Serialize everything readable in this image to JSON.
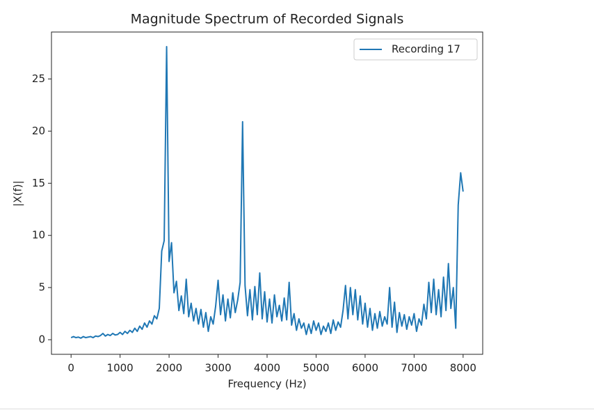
{
  "chart_data": {
    "type": "line",
    "title": "Magnitude Spectrum of Recorded Signals",
    "x_label": "Frequency (Hz)",
    "y_label": "|X(f)|",
    "legend": "upper right",
    "xlim": [
      -400,
      8400
    ],
    "ylim": [
      -1.4,
      29.5
    ],
    "xticks": [
      0,
      1000,
      2000,
      3000,
      4000,
      5000,
      6000,
      7000,
      8000
    ],
    "yticks": [
      0,
      5,
      10,
      15,
      20,
      25
    ],
    "x": [
      0,
      50,
      100,
      150,
      200,
      250,
      300,
      350,
      400,
      450,
      500,
      550,
      600,
      650,
      700,
      750,
      800,
      850,
      900,
      950,
      1000,
      1050,
      1100,
      1150,
      1200,
      1250,
      1300,
      1350,
      1400,
      1450,
      1500,
      1550,
      1600,
      1650,
      1700,
      1750,
      1800,
      1850,
      1900,
      1950,
      2000,
      2050,
      2100,
      2150,
      2200,
      2250,
      2300,
      2350,
      2400,
      2450,
      2500,
      2550,
      2600,
      2650,
      2700,
      2750,
      2800,
      2850,
      2900,
      2950,
      3000,
      3050,
      3100,
      3150,
      3200,
      3250,
      3300,
      3350,
      3400,
      3450,
      3500,
      3550,
      3600,
      3650,
      3700,
      3750,
      3800,
      3850,
      3900,
      3950,
      4000,
      4050,
      4100,
      4150,
      4200,
      4250,
      4300,
      4350,
      4400,
      4450,
      4500,
      4550,
      4600,
      4650,
      4700,
      4750,
      4800,
      4850,
      4900,
      4950,
      5000,
      5050,
      5100,
      5150,
      5200,
      5250,
      5300,
      5350,
      5400,
      5450,
      5500,
      5550,
      5600,
      5650,
      5700,
      5750,
      5800,
      5850,
      5900,
      5950,
      6000,
      6050,
      6100,
      6150,
      6200,
      6250,
      6300,
      6350,
      6400,
      6450,
      6500,
      6550,
      6600,
      6650,
      6700,
      6750,
      6800,
      6850,
      6900,
      6950,
      7000,
      7050,
      7100,
      7150,
      7200,
      7250,
      7300,
      7350,
      7400,
      7450,
      7500,
      7550,
      7600,
      7650,
      7700,
      7750,
      7800,
      7850,
      7900,
      7950,
      8000
    ],
    "series": [
      {
        "name": "Recording 17",
        "color": "#1f77b4",
        "values": [
          0.2,
          0.3,
          0.2,
          0.25,
          0.15,
          0.3,
          0.2,
          0.25,
          0.3,
          0.2,
          0.35,
          0.3,
          0.4,
          0.6,
          0.35,
          0.5,
          0.4,
          0.6,
          0.45,
          0.5,
          0.7,
          0.5,
          0.8,
          0.6,
          0.9,
          0.7,
          1.1,
          0.8,
          1.3,
          1.0,
          1.6,
          1.2,
          1.8,
          1.5,
          2.3,
          2.0,
          3.0,
          8.5,
          9.5,
          28.1,
          7.5,
          9.3,
          4.5,
          5.6,
          2.8,
          4.2,
          2.5,
          5.8,
          2.2,
          3.5,
          1.8,
          3.0,
          1.5,
          2.9,
          1.2,
          2.6,
          0.8,
          2.2,
          1.5,
          3.2,
          5.7,
          2.4,
          4.3,
          1.8,
          3.9,
          2.1,
          4.5,
          2.6,
          3.8,
          5.5,
          20.9,
          5.2,
          2.3,
          4.8,
          1.9,
          5.1,
          2.4,
          6.4,
          2.0,
          4.6,
          1.7,
          3.9,
          1.6,
          4.3,
          2.2,
          3.3,
          1.8,
          4.0,
          1.9,
          5.5,
          1.4,
          2.5,
          0.9,
          2.0,
          1.1,
          1.6,
          0.5,
          1.5,
          0.6,
          1.8,
          0.9,
          1.6,
          0.5,
          1.3,
          0.8,
          1.6,
          0.6,
          1.9,
          0.9,
          1.7,
          1.2,
          2.8,
          5.2,
          2.0,
          5.0,
          2.4,
          4.8,
          1.9,
          4.2,
          1.5,
          3.5,
          1.2,
          3.0,
          0.9,
          2.5,
          1.1,
          2.7,
          1.3,
          2.2,
          1.5,
          5.0,
          1.2,
          3.6,
          0.7,
          2.6,
          1.3,
          2.4,
          1.0,
          2.2,
          1.4,
          2.5,
          0.8,
          2.0,
          1.4,
          3.4,
          2.0,
          5.5,
          2.6,
          5.8,
          2.4,
          4.8,
          2.2,
          6.0,
          2.8,
          7.3,
          3.0,
          5.0,
          1.1,
          12.9,
          16.0,
          14.2
        ]
      }
    ]
  }
}
